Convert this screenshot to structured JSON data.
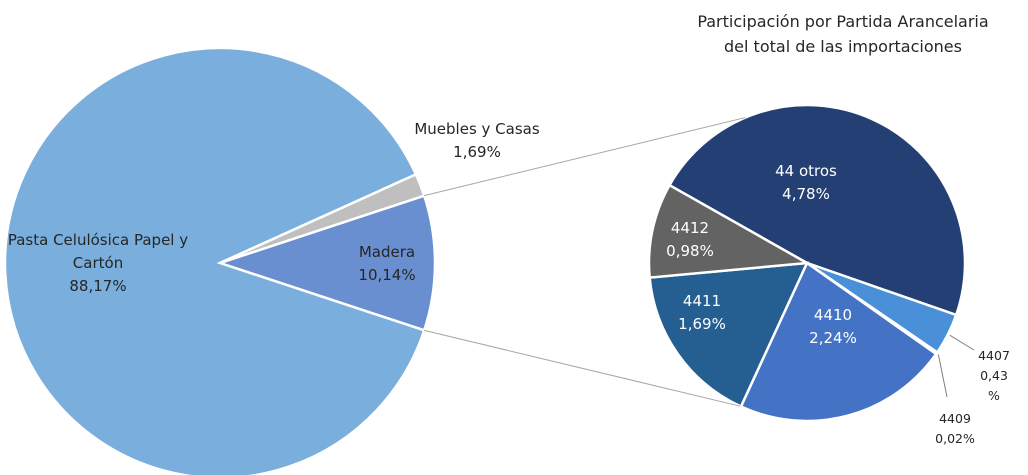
{
  "chart_data": [
    {
      "type": "pie",
      "categories": [
        "Madera",
        "Pasta Celulósica Papel y Cartón",
        "Muebles y Casas"
      ],
      "values": [
        10.14,
        88.17,
        1.69
      ],
      "value_labels": [
        "10,14%",
        "88,17%",
        "1,69%"
      ],
      "colors": [
        "#6a8fd0",
        "#7aaedc",
        "#bfbfbf"
      ]
    },
    {
      "type": "pie",
      "title": "Participación por Partida Arancelaria del total de las importaciones",
      "categories": [
        "44 otros",
        "4407",
        "4409",
        "4410",
        "4411",
        "4412"
      ],
      "values": [
        4.78,
        0.43,
        0.02,
        2.24,
        1.69,
        0.98
      ],
      "value_labels": [
        "4,78%",
        "0,43 %",
        "0,02%",
        "2,24%",
        "1,69%",
        "0,98%"
      ],
      "colors": [
        "#243f73",
        "#4a90d9",
        "#9dc3e6",
        "#4472c4",
        "#255e91",
        "#636363"
      ]
    }
  ]
}
